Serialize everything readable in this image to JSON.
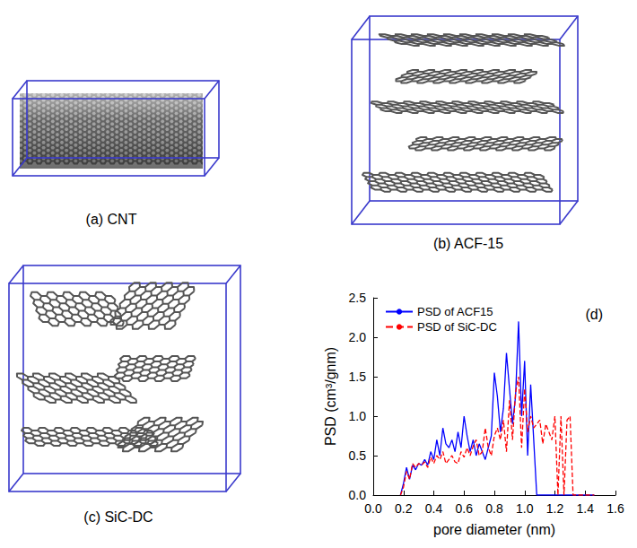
{
  "panels": [
    {
      "caption": "(a) CNT"
    },
    {
      "caption": "(b) ACF-15"
    },
    {
      "caption": "(c) SiC-DC"
    }
  ],
  "chart_data": {
    "type": "line",
    "panel_label": "(d)",
    "x_label": "pore diameter (nm)",
    "y_label": "PSD (cm³/gnm)",
    "xlim": [
      0,
      1.6
    ],
    "xticks": [
      {
        "value": 0,
        "label": "0.0"
      },
      0.2,
      0.4,
      0.6,
      0.8,
      {
        "value": 1,
        "label": "1.0"
      },
      1.2,
      1.4,
      1.6
    ],
    "ylim": [
      0,
      2.5
    ],
    "yticks": [
      {
        "value": 0,
        "label": "0.0"
      },
      0.5,
      {
        "value": 1,
        "label": "1.0"
      },
      1.5,
      {
        "value": 2,
        "label": "2.0"
      },
      2.5
    ],
    "grid": false,
    "legend": "upper left",
    "x": [
      0.18,
      0.2,
      0.22,
      0.24,
      0.26,
      0.28,
      0.3,
      0.32,
      0.34,
      0.36,
      0.38,
      0.4,
      0.42,
      0.44,
      0.46,
      0.48,
      0.5,
      0.52,
      0.54,
      0.56,
      0.58,
      0.6,
      0.62,
      0.64,
      0.66,
      0.68,
      0.7,
      0.72,
      0.74,
      0.76,
      0.78,
      0.8,
      0.82,
      0.84,
      0.86,
      0.88,
      0.9,
      0.92,
      0.94,
      0.96,
      0.98,
      1.0,
      1.02,
      1.04,
      1.06,
      1.08,
      1.1,
      1.12,
      1.14,
      1.16,
      1.18,
      1.2,
      1.22,
      1.24,
      1.26,
      1.28,
      1.3,
      1.32,
      1.34,
      1.36,
      1.38,
      1.4,
      1.42,
      1.44,
      1.46
    ],
    "series": [
      {
        "name": "PSD of ACF15",
        "color": "#0000ff",
        "line_style": "solid",
        "values": [
          0,
          0.15,
          0.35,
          0.2,
          0.38,
          0.32,
          0.4,
          0.38,
          0.45,
          0.38,
          0.55,
          0.45,
          0.7,
          0.5,
          0.85,
          0.65,
          0.6,
          0.7,
          0.55,
          0.8,
          0.6,
          1.0,
          0.75,
          0.55,
          0.7,
          0.5,
          0.65,
          0.55,
          0.45,
          0.6,
          0.75,
          1.55,
          1.25,
          0.8,
          1.1,
          1.8,
          1.35,
          0.9,
          1.25,
          2.2,
          1.0,
          1.7,
          0.5,
          1.4,
          0.7,
          0,
          0,
          0,
          0,
          0,
          0,
          0,
          0,
          0,
          0,
          0,
          0,
          0,
          0,
          0,
          0,
          0,
          0,
          0,
          0
        ]
      },
      {
        "name": "PSD of SiC-DC",
        "color": "#ff0000",
        "line_style": "dashed",
        "values": [
          0,
          0.1,
          0.3,
          0.2,
          0.4,
          0.35,
          0.4,
          0.38,
          0.42,
          0.35,
          0.48,
          0.4,
          0.5,
          0.45,
          0.55,
          0.4,
          0.45,
          0.5,
          0.42,
          0.4,
          0.55,
          0.48,
          0.6,
          0.5,
          0.62,
          0.7,
          0.5,
          0.55,
          0.85,
          0.6,
          0.5,
          0.75,
          0.85,
          0.7,
          0.95,
          0.55,
          1.2,
          0.7,
          1.3,
          1.5,
          0.6,
          1.35,
          0.8,
          1.0,
          0.85,
          0.9,
          0.95,
          0.65,
          0.9,
          0.8,
          0.7,
          1.0,
          0,
          1.0,
          0,
          0.95,
          1.0,
          0,
          0,
          0,
          0,
          0,
          0,
          0,
          0
        ]
      }
    ]
  }
}
